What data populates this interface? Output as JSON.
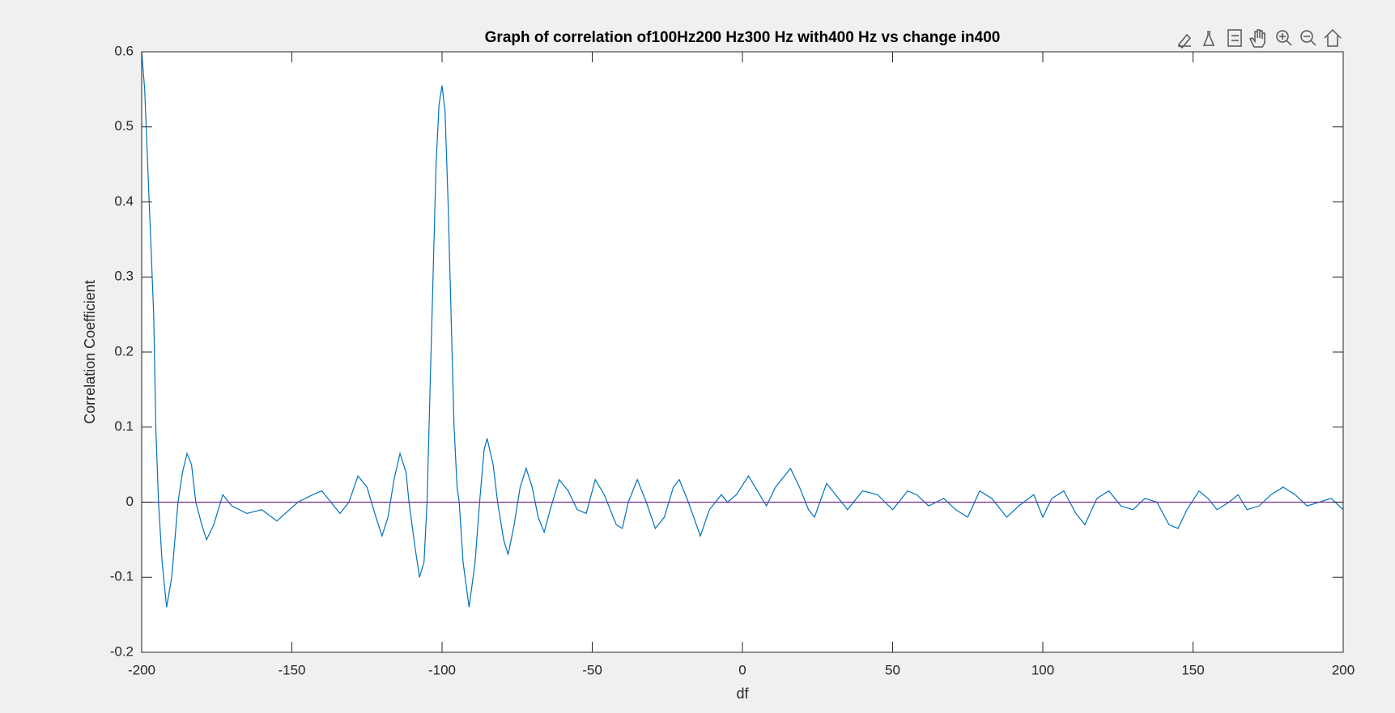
{
  "chart_data": {
    "type": "line",
    "title": "Graph of correlation of100Hz200 Hz300 Hz with400 Hz vs change in400",
    "xlabel": "df",
    "ylabel": "Correlation Coefficient",
    "xlim": [
      -200,
      200
    ],
    "ylim": [
      -0.2,
      0.6
    ],
    "xticks": [
      -200,
      -150,
      -100,
      -50,
      0,
      50,
      100,
      150,
      200
    ],
    "yticks": [
      -0.2,
      -0.1,
      0,
      0.1,
      0.2,
      0.3,
      0.4,
      0.5,
      0.6
    ],
    "grid": false,
    "series": [
      {
        "color": "#0072bd",
        "x": [
          -200,
          -199,
          -198.5,
          -197,
          -196,
          -195.3,
          -194.4,
          -193.2,
          -191.7,
          -190,
          -187.9,
          -186.4,
          -184.9,
          -183.4,
          -182,
          -180,
          -178.4,
          -176,
          -173,
          -170,
          -165,
          -160,
          -155,
          -148,
          -143,
          -140,
          -137,
          -134,
          -131,
          -128,
          -125,
          -122,
          -120,
          -118,
          -116,
          -114,
          -112,
          -111,
          -109,
          -107.5,
          -106,
          -105,
          -104,
          -103,
          -102,
          -101,
          -100,
          -99,
          -98,
          -97,
          -96,
          -95,
          -94.3,
          -93,
          -91,
          -89,
          -87.5,
          -86,
          -85,
          -83,
          -81.5,
          -79.5,
          -78,
          -76,
          -74,
          -72,
          -70,
          -68,
          -66,
          -64,
          -61,
          -58,
          -55,
          -52,
          -49,
          -46,
          -42,
          -40,
          -38,
          -35,
          -32,
          -29,
          -26,
          -23,
          -21,
          -18,
          -14,
          -11,
          -7,
          -5,
          -2,
          2,
          5,
          8,
          11,
          16,
          19,
          22,
          24,
          28,
          31,
          35,
          40,
          45,
          50,
          55,
          58,
          62,
          67,
          71,
          75,
          79,
          83,
          88,
          92,
          97,
          100,
          103,
          107,
          111,
          114,
          118,
          122,
          126,
          130,
          134,
          138,
          142,
          145,
          148,
          152,
          155,
          158,
          162,
          165,
          168,
          172,
          176,
          180,
          184,
          188,
          192,
          196,
          200
        ],
        "values": [
          0.6,
          0.55,
          0.5,
          0.35,
          0.25,
          0.1,
          0.0,
          -0.08,
          -0.14,
          -0.1,
          0.0,
          0.04,
          0.065,
          0.05,
          0.0,
          -0.03,
          -0.05,
          -0.03,
          0.01,
          -0.005,
          -0.015,
          -0.01,
          -0.025,
          0.0,
          0.01,
          0.015,
          0.0,
          -0.015,
          0.0,
          0.035,
          0.02,
          -0.02,
          -0.045,
          -0.02,
          0.03,
          0.065,
          0.04,
          0.0,
          -0.06,
          -0.1,
          -0.08,
          0.0,
          0.15,
          0.3,
          0.45,
          0.53,
          0.555,
          0.52,
          0.4,
          0.25,
          0.1,
          0.02,
          0.0,
          -0.08,
          -0.14,
          -0.08,
          0.0,
          0.07,
          0.085,
          0.05,
          0.0,
          -0.05,
          -0.07,
          -0.03,
          0.02,
          0.045,
          0.02,
          -0.02,
          -0.04,
          -0.01,
          0.03,
          0.015,
          -0.01,
          -0.015,
          0.03,
          0.01,
          -0.03,
          -0.035,
          0.0,
          0.03,
          0.0,
          -0.035,
          -0.02,
          0.02,
          0.03,
          0.0,
          -0.045,
          -0.01,
          0.01,
          0.0,
          0.01,
          0.035,
          0.015,
          -0.005,
          0.02,
          0.045,
          0.02,
          -0.01,
          -0.02,
          0.025,
          0.01,
          -0.01,
          0.015,
          0.01,
          -0.01,
          0.015,
          0.01,
          -0.005,
          0.005,
          -0.01,
          -0.02,
          0.015,
          0.005,
          -0.02,
          -0.005,
          0.01,
          -0.02,
          0.005,
          0.015,
          -0.015,
          -0.03,
          0.005,
          0.015,
          -0.005,
          -0.01,
          0.005,
          0.0,
          -0.03,
          -0.035,
          -0.01,
          0.015,
          0.005,
          -0.01,
          0.0,
          0.01,
          -0.01,
          -0.005,
          0.01,
          0.02,
          0.01,
          -0.005,
          0.0,
          0.005,
          -0.01
        ]
      },
      {
        "color": "#7e2f8e",
        "x": [
          -200,
          200
        ],
        "values": [
          0,
          0
        ]
      }
    ]
  }
}
